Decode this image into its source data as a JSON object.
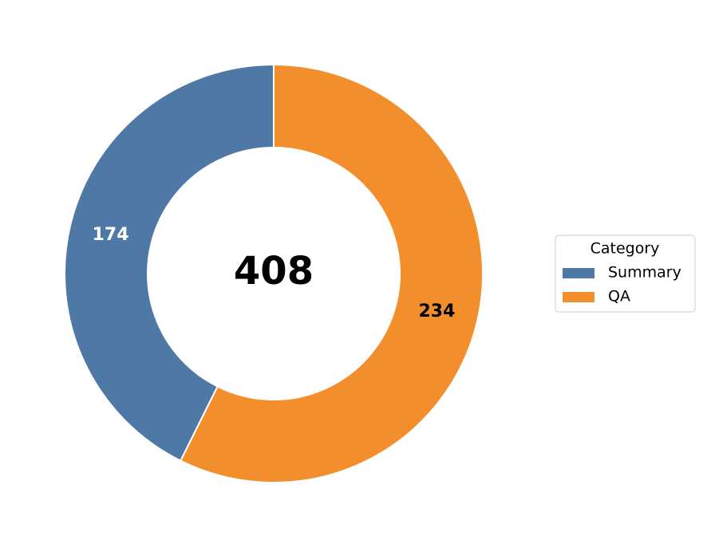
{
  "chart_data": {
    "type": "donut",
    "categories": [
      "Summary",
      "QA"
    ],
    "values": [
      174,
      234
    ],
    "colors": [
      "#4e79a7",
      "#f28e2b"
    ],
    "label_colors": [
      "#ffffff",
      "#000000"
    ],
    "total": 408,
    "legend_title": "Category",
    "legend": "right"
  }
}
